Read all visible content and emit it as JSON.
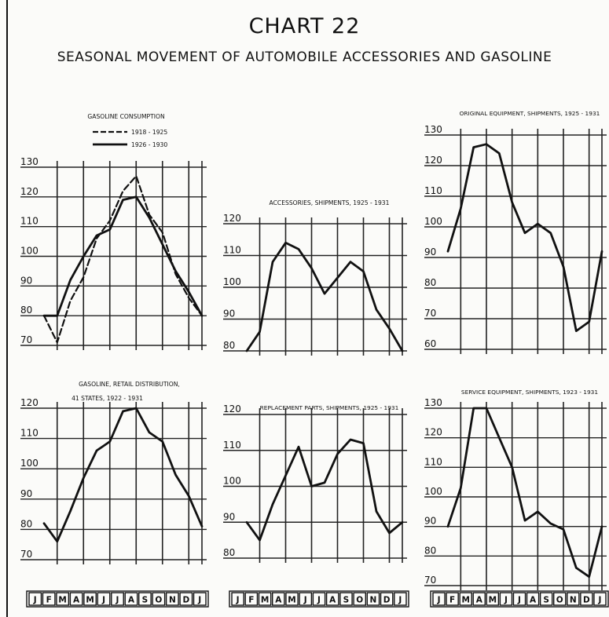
{
  "figure": {
    "number": "CHART 22",
    "title": "SEASONAL MOVEMENT OF AUTOMOBILE ACCESSORIES AND GASOLINE"
  },
  "months": [
    "J",
    "F",
    "M",
    "A",
    "M",
    "J",
    "J",
    "A",
    "S",
    "O",
    "N",
    "D",
    "J"
  ],
  "chart_data": [
    {
      "type": "line",
      "title": "GASOLINE CONSUMPTION",
      "xlabel": "",
      "ylabel": "",
      "ylim": [
        70,
        130
      ],
      "yticks": [
        70,
        80,
        90,
        100,
        110,
        120,
        130
      ],
      "grid": true,
      "legend": "top-center",
      "series": [
        {
          "name": "1918 - 1925",
          "style": "dashed",
          "values": [
            80,
            71,
            85,
            93,
            106,
            112,
            122,
            127,
            114,
            108,
            94,
            86,
            80
          ]
        },
        {
          "name": "1926 - 1930",
          "style": "solid",
          "values": [
            80,
            80,
            92,
            100,
            107,
            109,
            119,
            120,
            113,
            104,
            95,
            88,
            80
          ]
        }
      ]
    },
    {
      "type": "line",
      "title": "ACCESSORIES, SHIPMENTS, 1925 - 1931",
      "xlabel": "",
      "ylabel": "",
      "ylim": [
        80,
        120
      ],
      "yticks": [
        80,
        90,
        100,
        110,
        120
      ],
      "grid": true,
      "series": [
        {
          "style": "solid",
          "values": [
            80,
            86,
            108,
            114,
            112,
            106,
            98,
            103,
            108,
            105,
            93,
            87,
            80
          ]
        }
      ]
    },
    {
      "type": "line",
      "title": "ORIGINAL EQUIPMENT, SHIPMENTS, 1925 - 1931",
      "xlabel": "",
      "ylabel": "",
      "ylim": [
        60,
        130
      ],
      "yticks": [
        60,
        70,
        80,
        90,
        100,
        110,
        120,
        130
      ],
      "grid": true,
      "series": [
        {
          "style": "solid",
          "values": [
            92,
            106,
            126,
            127,
            124,
            108,
            98,
            101,
            98,
            87,
            66,
            69,
            92
          ]
        }
      ]
    },
    {
      "type": "line",
      "title": "GASOLINE, RETAIL DISTRIBUTION, 41 STATES, 1922 - 1931",
      "xlabel": "",
      "ylabel": "",
      "ylim": [
        70,
        120
      ],
      "yticks": [
        70,
        80,
        90,
        100,
        110,
        120
      ],
      "grid": true,
      "series": [
        {
          "style": "solid",
          "values": [
            82,
            76,
            86,
            97,
            106,
            109,
            119,
            120,
            112,
            109,
            98,
            91,
            81
          ]
        }
      ]
    },
    {
      "type": "line",
      "title": "REPLACEMENT PARTS, SHIPMENTS, 1925 - 1931",
      "xlabel": "",
      "ylabel": "",
      "ylim": [
        80,
        120
      ],
      "yticks": [
        80,
        90,
        100,
        110,
        120
      ],
      "grid": true,
      "series": [
        {
          "style": "solid",
          "values": [
            90,
            85,
            95,
            103,
            111,
            100,
            101,
            109,
            113,
            112,
            93,
            87,
            90
          ]
        }
      ]
    },
    {
      "type": "line",
      "title": "SERVICE EQUIPMENT, SHIPMENTS, 1923 - 1931",
      "xlabel": "",
      "ylabel": "",
      "ylim": [
        70,
        130
      ],
      "yticks": [
        70,
        80,
        90,
        100,
        110,
        120,
        130
      ],
      "grid": true,
      "series": [
        {
          "style": "solid",
          "values": [
            90,
            103,
            130,
            130,
            120,
            110,
            92,
            95,
            91,
            89,
            76,
            73,
            90
          ]
        }
      ]
    }
  ]
}
